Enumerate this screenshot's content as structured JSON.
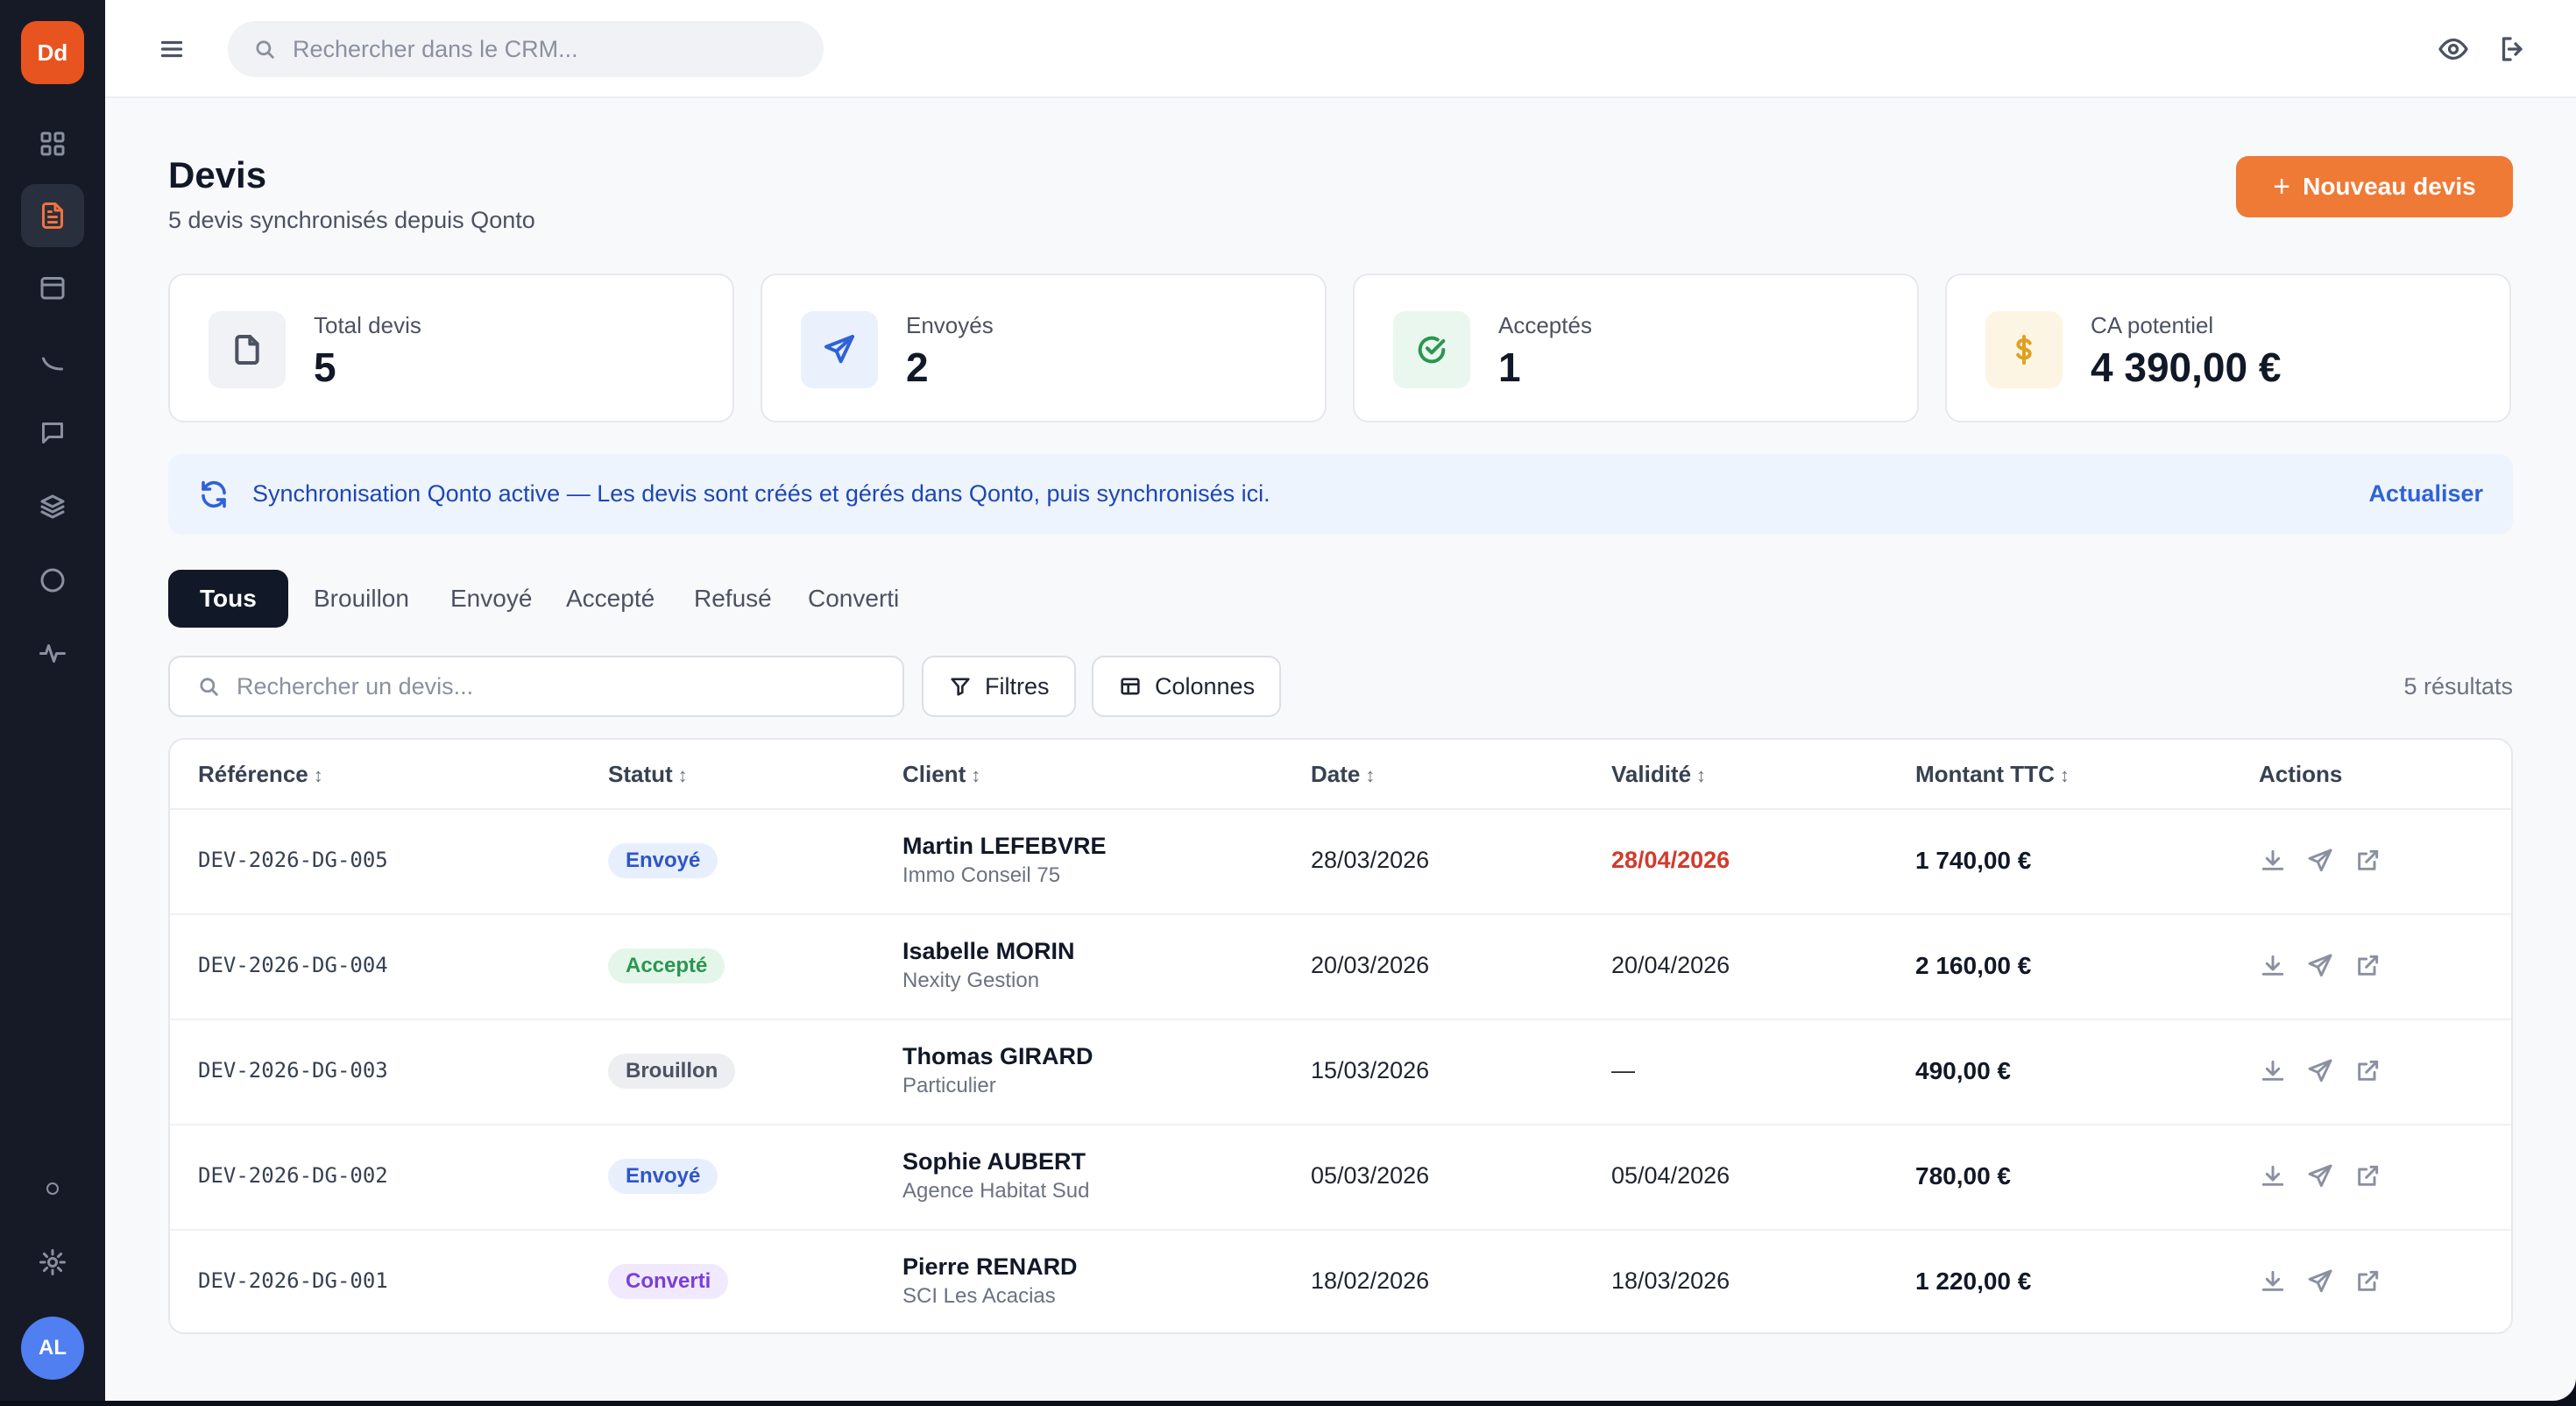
{
  "rail": {
    "logo": "Dd",
    "avatar": "AL",
    "items": [
      "grid-icon",
      "file-text-icon",
      "calendar-icon",
      "curve-icon",
      "chat-icon",
      "layers-icon",
      "circle-icon",
      "activity-icon",
      "settings-icon"
    ]
  },
  "topbar": {
    "search_placeholder": "Rechercher dans le CRM..."
  },
  "header": {
    "title": "Devis",
    "subtitle": "5 devis synchronisés depuis Qonto",
    "new_button": "Nouveau devis"
  },
  "stats": [
    {
      "label": "Total devis",
      "value": "5",
      "icon": "file-icon",
      "bg": "#f1f2f5",
      "color": "#4b5262"
    },
    {
      "label": "Envoyés",
      "value": "2",
      "icon": "send-icon",
      "bg": "#eaf1fd",
      "color": "#2f62d8"
    },
    {
      "label": "Acceptés",
      "value": "1",
      "icon": "check-circle-icon",
      "bg": "#e9f7ee",
      "color": "#2a9650"
    },
    {
      "label": "CA potentiel",
      "value": "4 390,00 €",
      "icon": "dollar-icon",
      "bg": "#fdf5e3",
      "color": "#e0a020"
    }
  ],
  "sync": {
    "message": "Synchronisation Qonto active — Les devis sont créés et gérés dans Qonto, puis synchronisés ici.",
    "refresh": "Actualiser"
  },
  "tabs": [
    "Tous",
    "Brouillon",
    "Envoyé",
    "Accepté",
    "Refusé",
    "Converti"
  ],
  "filters": {
    "search_placeholder": "Rechercher un devis...",
    "filters_label": "Filtres",
    "columns_label": "Colonnes",
    "results": "5 résultats"
  },
  "table": {
    "headers": {
      "reference": "Référence",
      "status": "Statut",
      "client": "Client",
      "date": "Date",
      "validity": "Validité",
      "amount": "Montant TTC",
      "actions": "Actions"
    },
    "rows": [
      {
        "ref": "DEV-2026-DG-005",
        "status": "Envoyé",
        "status_kind": "envoye",
        "name": "Martin LEFEBVRE",
        "company": "Immo Conseil 75",
        "date": "28/03/2026",
        "validity": "28/04/2026",
        "expired": true,
        "amount": "1 740,00 €"
      },
      {
        "ref": "DEV-2026-DG-004",
        "status": "Accepté",
        "status_kind": "accepte",
        "name": "Isabelle MORIN",
        "company": "Nexity Gestion",
        "date": "20/03/2026",
        "validity": "20/04/2026",
        "expired": false,
        "amount": "2 160,00 €"
      },
      {
        "ref": "DEV-2026-DG-003",
        "status": "Brouillon",
        "status_kind": "brouillon",
        "name": "Thomas GIRARD",
        "company": "Particulier",
        "date": "15/03/2026",
        "validity": "—",
        "expired": false,
        "amount": "490,00 €"
      },
      {
        "ref": "DEV-2026-DG-002",
        "status": "Envoyé",
        "status_kind": "envoye",
        "name": "Sophie AUBERT",
        "company": "Agence Habitat Sud",
        "date": "05/03/2026",
        "validity": "05/04/2026",
        "expired": false,
        "amount": "780,00 €"
      },
      {
        "ref": "DEV-2026-DG-001",
        "status": "Converti",
        "status_kind": "converti",
        "name": "Pierre RENARD",
        "company": "SCI Les Acacias",
        "date": "18/02/2026",
        "validity": "18/03/2026",
        "expired": false,
        "amount": "1 220,00 €"
      }
    ]
  }
}
